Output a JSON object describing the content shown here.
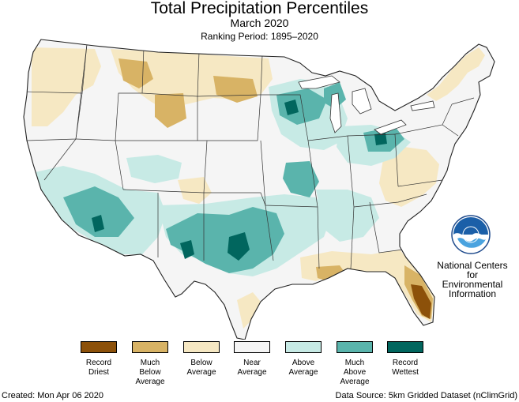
{
  "header": {
    "title": "Total Precipitation Percentiles",
    "subtitle": "March 2020",
    "ranking": "Ranking Period: 1895–2020"
  },
  "organization": {
    "name_line1": "National Centers for",
    "name_line2": "Environmental",
    "name_line3": "Information",
    "logo_text": "NOAA"
  },
  "legend": [
    {
      "label": "Record\nDriest",
      "color": "#8c510a"
    },
    {
      "label": "Much\nBelow\nAverage",
      "color": "#d8b365"
    },
    {
      "label": "Below\nAverage",
      "color": "#f6e8c3"
    },
    {
      "label": "Near\nAverage",
      "color": "#f5f5f5"
    },
    {
      "label": "Above\nAverage",
      "color": "#c7eae5"
    },
    {
      "label": "Much\nAbove\nAverage",
      "color": "#5ab4ac"
    },
    {
      "label": "Record\nWettest",
      "color": "#01665e"
    }
  ],
  "footer": {
    "created": "Created: Mon Apr 06 2020",
    "source": "Data Source: 5km Gridded Dataset (nClimGrid)"
  }
}
